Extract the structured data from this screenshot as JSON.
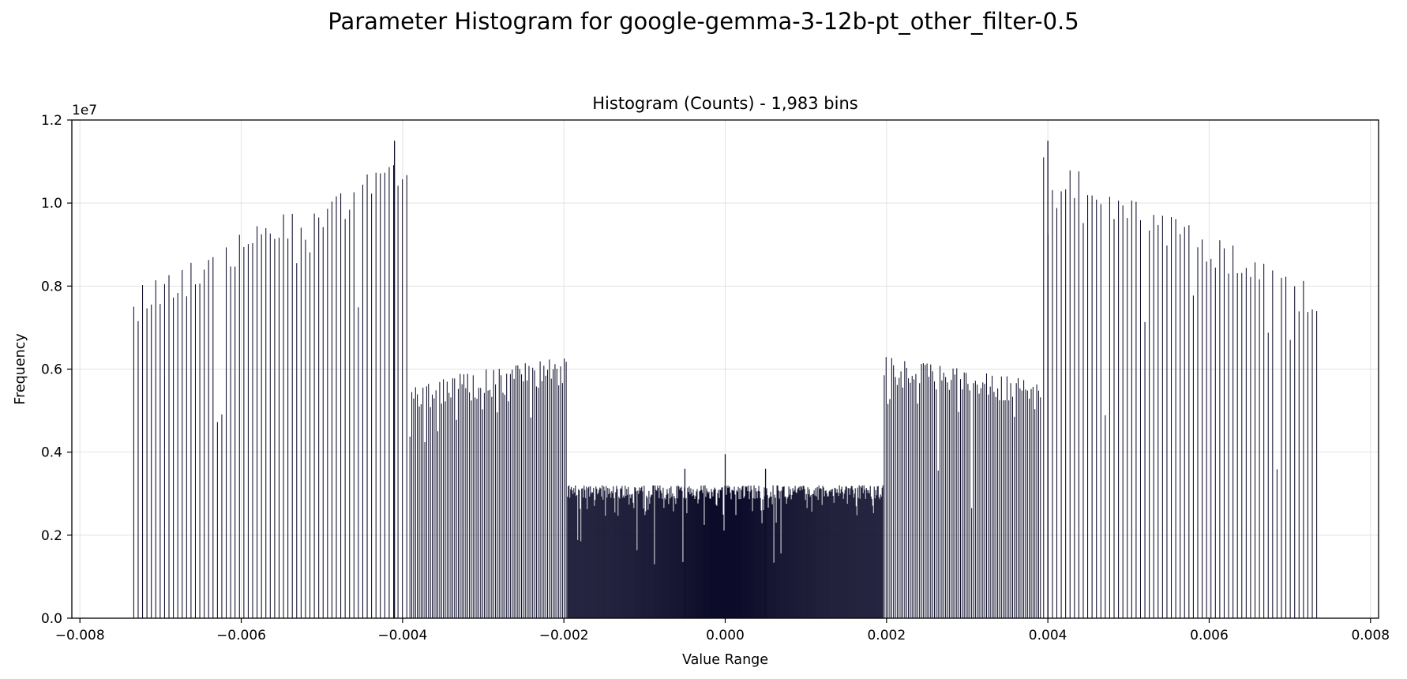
{
  "figure": {
    "title": "Parameter Histogram for google-gemma-3-12b-pt_other_filter-0.5"
  },
  "chart_data": {
    "type": "bar",
    "title": "Histogram (Counts) - 1,983 bins",
    "xlabel": "Value Range",
    "ylabel": "Frequency",
    "y_offset_text": "1e7",
    "xlim": [
      -0.0081,
      0.0081
    ],
    "ylim": [
      0,
      12000000
    ],
    "x_ticks": [
      {
        "value": -0.008,
        "label": "−0.008"
      },
      {
        "value": -0.006,
        "label": "−0.006"
      },
      {
        "value": -0.004,
        "label": "−0.004"
      },
      {
        "value": -0.002,
        "label": "−0.002"
      },
      {
        "value": 0.0,
        "label": "0.000"
      },
      {
        "value": 0.002,
        "label": "0.002"
      },
      {
        "value": 0.004,
        "label": "0.004"
      },
      {
        "value": 0.006,
        "label": "0.006"
      },
      {
        "value": 0.008,
        "label": "0.008"
      }
    ],
    "y_ticks": [
      {
        "value": 0,
        "label": "0.0"
      },
      {
        "value": 2000000,
        "label": "0.2"
      },
      {
        "value": 4000000,
        "label": "0.4"
      },
      {
        "value": 6000000,
        "label": "0.6"
      },
      {
        "value": 8000000,
        "label": "0.8"
      },
      {
        "value": 10000000,
        "label": "1.0"
      },
      {
        "value": 12000000,
        "label": "1.2"
      }
    ],
    "grid": true,
    "bar_color": "#0d0d2b",
    "value_range": [
      -0.00736,
      0.00736
    ],
    "bins": 1983,
    "regions": [
      {
        "x_start": -0.00736,
        "x_end": -0.00392,
        "bar_spacing": 5.43e-05,
        "y_start": 8000000,
        "y_end": 11200000,
        "y_jitter": 900000
      },
      {
        "x_start": -0.00392,
        "x_end": -0.00196,
        "bar_spacing": 2.3e-05,
        "y_start": 5700000,
        "y_end": 6300000,
        "y_jitter": 700000
      },
      {
        "x_start": -0.00196,
        "x_end": 0.00196,
        "bar_spacing": 9.8e-06,
        "y_start": 3200000,
        "y_end": 3200000,
        "y_jitter": 350000
      },
      {
        "x_start": 0.00196,
        "x_end": 0.00392,
        "bar_spacing": 2.3e-05,
        "y_start": 6300000,
        "y_end": 5700000,
        "y_jitter": 700000
      },
      {
        "x_start": 0.00392,
        "x_end": 0.00736,
        "bar_spacing": 5.43e-05,
        "y_start": 11200000,
        "y_end": 8000000,
        "y_jitter": 900000
      }
    ],
    "peaks": [
      {
        "x": -0.0041,
        "y": 11500000
      },
      {
        "x": 0.004,
        "y": 11500000
      },
      {
        "x": 0.0,
        "y": 3950000
      },
      {
        "x": -0.0005,
        "y": 3600000
      },
      {
        "x": 0.0005,
        "y": 3600000
      }
    ]
  }
}
